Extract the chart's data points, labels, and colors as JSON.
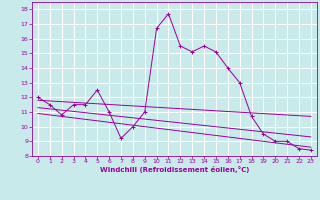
{
  "xlabel": "Windchill (Refroidissement éolien,°C)",
  "background_color": "#c8eaea",
  "grid_color": "#ffffff",
  "line_color": "#990099",
  "xlim": [
    -0.5,
    23.5
  ],
  "ylim": [
    8,
    18.5
  ],
  "yticks": [
    8,
    9,
    10,
    11,
    12,
    13,
    14,
    15,
    16,
    17,
    18
  ],
  "xticks": [
    0,
    1,
    2,
    3,
    4,
    5,
    6,
    7,
    8,
    9,
    10,
    11,
    12,
    13,
    14,
    15,
    16,
    17,
    18,
    19,
    20,
    21,
    22,
    23
  ],
  "series1": {
    "x": [
      0,
      1,
      2,
      3,
      4,
      5,
      6,
      7,
      8,
      9,
      10,
      11,
      12,
      13,
      14,
      15,
      16,
      17,
      18,
      19,
      20,
      21,
      22,
      23
    ],
    "y": [
      12.0,
      11.5,
      10.8,
      11.5,
      11.5,
      12.5,
      11.0,
      9.2,
      10.0,
      11.0,
      16.7,
      17.7,
      15.5,
      15.1,
      15.5,
      15.1,
      14.0,
      13.0,
      10.7,
      9.5,
      9.0,
      9.0,
      8.5,
      8.4
    ]
  },
  "series2": {
    "x": [
      0,
      23
    ],
    "y": [
      11.8,
      10.7
    ]
  },
  "series3": {
    "x": [
      0,
      23
    ],
    "y": [
      11.3,
      9.3
    ]
  },
  "series4": {
    "x": [
      0,
      23
    ],
    "y": [
      10.9,
      8.6
    ]
  }
}
